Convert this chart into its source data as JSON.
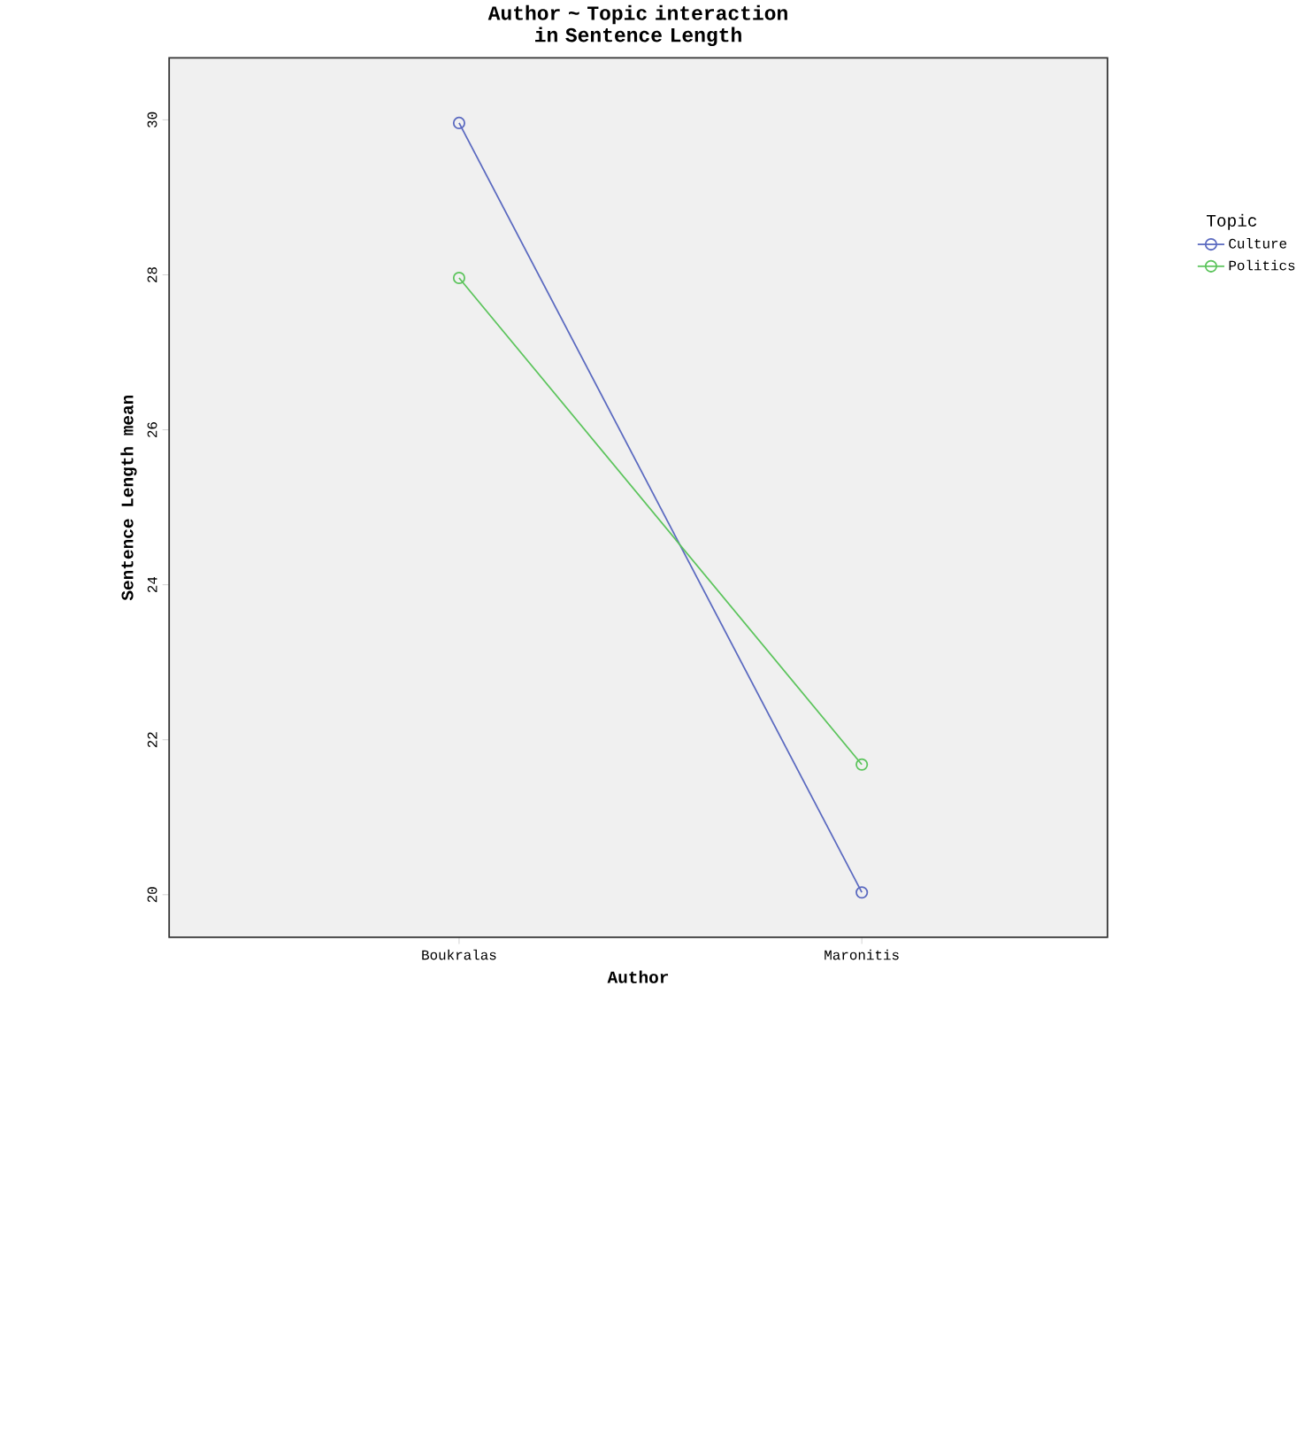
{
  "chart_data": {
    "type": "line",
    "title": "Author ~ Topic interaction in Sentence Length",
    "xlabel": "Author",
    "ylabel": "Sentence Length mean",
    "legend_title": "Topic",
    "categories": [
      "Boukralas",
      "Maronitis"
    ],
    "series": [
      {
        "name": "Culture",
        "color": "#5b6ac0",
        "values": [
          29.96,
          20.03
        ]
      },
      {
        "name": "Politics",
        "color": "#5cc45c",
        "values": [
          27.96,
          21.68
        ]
      }
    ],
    "ylim": [
      19.45,
      30.8
    ],
    "yticks": [
      20,
      22,
      24,
      26,
      28,
      30
    ],
    "grid": false,
    "legend": "right",
    "marker": "circle",
    "line_style": "solid"
  }
}
